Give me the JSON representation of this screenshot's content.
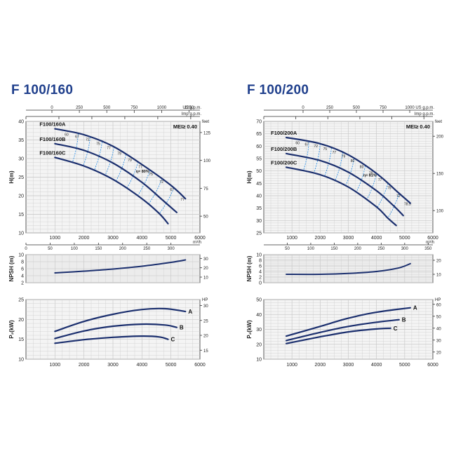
{
  "charts": [
    {
      "title": "F 100/160",
      "mei": "MEI≥ 0.40",
      "q_ticks": [
        1000,
        2000,
        3000,
        4000,
        5000,
        6000
      ],
      "q_label": "Q (l/min)",
      "usgpm": {
        "ticks": [
          "0",
          "250",
          "500",
          "750",
          "1000",
          "1250"
        ],
        "unit": "US g.p.m."
      },
      "impgpm": {
        "ticks": [
          "0",
          "250",
          "500",
          "750",
          "1000",
          "1250"
        ],
        "unit": "Imp g.p.m."
      },
      "m3h": {
        "ticks": [
          "0",
          "50",
          "100",
          "150",
          "200",
          "250",
          "300"
        ],
        "unit": "m³/h"
      },
      "head": {
        "ylabel": "H(m)",
        "ylim": [
          10,
          40
        ],
        "yticks": [
          10,
          15,
          20,
          25,
          30,
          35,
          40
        ],
        "right_unit": "feet",
        "right_ticks": [
          "50",
          "75",
          "100",
          "125"
        ],
        "eff_label": "η= 80%",
        "series": [
          {
            "name": "F100/160A",
            "points": [
              [
                1000,
                38
              ],
              [
                2000,
                36.4
              ],
              [
                3000,
                33.3
              ],
              [
                4000,
                28.4
              ],
              [
                5000,
                22.8
              ],
              [
                5500,
                19.2
              ]
            ]
          },
          {
            "name": "F100/160B",
            "points": [
              [
                1000,
                34
              ],
              [
                2000,
                32.2
              ],
              [
                3000,
                28.8
              ],
              [
                4000,
                23.6
              ],
              [
                4700,
                18.9
              ],
              [
                5200,
                15.5
              ]
            ]
          },
          {
            "name": "F100/160C",
            "points": [
              [
                1000,
                30.3
              ],
              [
                2000,
                28
              ],
              [
                3000,
                24.4
              ],
              [
                4000,
                19.2
              ],
              [
                4600,
                15.2
              ],
              [
                4900,
                12.5
              ]
            ]
          }
        ],
        "eff_labels": [
          "60",
          "67",
          "72",
          "75",
          "77",
          "79",
          "79",
          "77",
          "75",
          "72",
          "67",
          "77"
        ]
      },
      "npsh": {
        "ylabel": "NPSH (m)",
        "ylim": [
          2,
          10
        ],
        "yticks": [
          2,
          4,
          6,
          8,
          10
        ],
        "right_ticks": [
          "10",
          "20",
          "30"
        ],
        "points": [
          [
            1000,
            4.8
          ],
          [
            2000,
            5.3
          ],
          [
            3000,
            5.9
          ],
          [
            4000,
            6.7
          ],
          [
            5000,
            7.8
          ],
          [
            5500,
            8.5
          ]
        ]
      },
      "power": {
        "ylabel": "P₂(kW)",
        "ylim": [
          10,
          25
        ],
        "yticks": [
          10,
          15,
          20,
          25
        ],
        "right_unit": "HP",
        "right_ticks": [
          "15",
          "20",
          "25",
          "30"
        ],
        "series": [
          {
            "name": "A",
            "points": [
              [
                1000,
                17
              ],
              [
                2000,
                19.5
              ],
              [
                3000,
                21.3
              ],
              [
                4000,
                22.5
              ],
              [
                4800,
                22.7
              ],
              [
                5500,
                22
              ]
            ]
          },
          {
            "name": "B",
            "points": [
              [
                1000,
                15.2
              ],
              [
                2000,
                17.1
              ],
              [
                3000,
                18.3
              ],
              [
                4000,
                18.8
              ],
              [
                4800,
                18.6
              ],
              [
                5200,
                18
              ]
            ]
          },
          {
            "name": "C",
            "points": [
              [
                1000,
                14
              ],
              [
                2000,
                14.9
              ],
              [
                3000,
                15.5
              ],
              [
                4000,
                15.8
              ],
              [
                4600,
                15.6
              ],
              [
                4900,
                15
              ]
            ]
          }
        ]
      }
    },
    {
      "title": "F 100/200",
      "mei": "MEI≥ 0.40",
      "q_ticks": [
        1000,
        2000,
        3000,
        4000,
        5000,
        6000
      ],
      "q_label": "Q (l/min)",
      "usgpm": {
        "ticks": [
          "0",
          "250",
          "500",
          "750",
          "1000",
          "1250"
        ],
        "unit": "US g.p.m."
      },
      "impgpm": {
        "ticks": [
          "0",
          "250",
          "500",
          "750",
          "1000",
          "1250"
        ],
        "unit": "Imp g.p.m."
      },
      "m3h": {
        "ticks": [
          "50",
          "100",
          "150",
          "200",
          "250",
          "300",
          "350"
        ],
        "unit": "m³/h"
      },
      "head": {
        "ylabel": "H(m)",
        "ylim": [
          25,
          70
        ],
        "yticks": [
          25,
          30,
          35,
          40,
          45,
          50,
          55,
          60,
          65,
          70
        ],
        "right_unit": "feet",
        "right_ticks": [
          "100",
          "150",
          "200"
        ],
        "eff_label": "η= 81%",
        "series": [
          {
            "name": "F100/200A",
            "points": [
              [
                800,
                63.5
              ],
              [
                2000,
                61
              ],
              [
                3000,
                56.5
              ],
              [
                4000,
                49
              ],
              [
                4800,
                41
              ],
              [
                5200,
                37
              ]
            ]
          },
          {
            "name": "F100/200B",
            "points": [
              [
                800,
                57
              ],
              [
                2000,
                54.2
              ],
              [
                3000,
                49.5
              ],
              [
                4000,
                42
              ],
              [
                4600,
                36
              ],
              [
                4950,
                32
              ]
            ]
          },
          {
            "name": "F100/200C",
            "points": [
              [
                800,
                51.5
              ],
              [
                2000,
                48.5
              ],
              [
                3000,
                43.5
              ],
              [
                4000,
                35.5
              ],
              [
                4400,
                31
              ],
              [
                4700,
                28
              ]
            ]
          }
        ],
        "eff_labels": [
          "60",
          "67",
          "72",
          "75",
          "77",
          "79",
          "80",
          "80",
          "79",
          "77",
          "75",
          "72",
          "78.5"
        ]
      },
      "npsh": {
        "ylabel": "NPSH (m)",
        "ylim": [
          0,
          10
        ],
        "yticks": [
          0,
          2,
          4,
          6,
          8,
          10
        ],
        "right_ticks": [
          "10",
          "20"
        ],
        "points": [
          [
            800,
            3
          ],
          [
            2000,
            3
          ],
          [
            3000,
            3.3
          ],
          [
            4000,
            4
          ],
          [
            4800,
            5.3
          ],
          [
            5200,
            6.8
          ]
        ]
      },
      "power": {
        "ylabel": "P₂(kW)",
        "ylim": [
          10,
          50
        ],
        "yticks": [
          10,
          20,
          30,
          40,
          50
        ],
        "right_unit": "HP",
        "right_ticks": [
          "20",
          "30",
          "40",
          "50",
          "60"
        ],
        "series": [
          {
            "name": "A",
            "points": [
              [
                800,
                25.5
              ],
              [
                2000,
                32
              ],
              [
                3000,
                37.5
              ],
              [
                4000,
                41.5
              ],
              [
                5200,
                44.5
              ]
            ]
          },
          {
            "name": "B",
            "points": [
              [
                800,
                22.5
              ],
              [
                2000,
                28
              ],
              [
                3000,
                32
              ],
              [
                4000,
                34.8
              ],
              [
                4800,
                36.5
              ]
            ]
          },
          {
            "name": "C",
            "points": [
              [
                800,
                20.5
              ],
              [
                2000,
                25
              ],
              [
                3000,
                28.3
              ],
              [
                4000,
                30.3
              ],
              [
                4500,
                30.8
              ]
            ]
          }
        ]
      }
    }
  ],
  "chart_data": [
    {
      "type": "line",
      "title": "F 100/160 — H(m) vs Q (l/min)",
      "xlabel": "Q (l/min)",
      "ylabel": "H(m)",
      "ylim": [
        10,
        40
      ],
      "series": [
        {
          "name": "F100/160A",
          "x": [
            1000,
            2000,
            3000,
            4000,
            5000,
            5500
          ],
          "values": [
            38,
            36.4,
            33.3,
            28.4,
            22.8,
            19.2
          ]
        },
        {
          "name": "F100/160B",
          "x": [
            1000,
            2000,
            3000,
            4000,
            4700,
            5200
          ],
          "values": [
            34,
            32.2,
            28.8,
            23.6,
            18.9,
            15.5
          ]
        },
        {
          "name": "F100/160C",
          "x": [
            1000,
            2000,
            3000,
            4000,
            4600,
            4900
          ],
          "values": [
            30.3,
            28,
            24.4,
            19.2,
            15.2,
            12.5
          ]
        }
      ]
    },
    {
      "type": "line",
      "title": "F 100/160 — NPSH (m)",
      "xlabel": "",
      "ylabel": "NPSH (m)",
      "ylim": [
        2,
        10
      ],
      "series": [
        {
          "name": "",
          "x": [
            1000,
            2000,
            3000,
            4000,
            5000,
            5500
          ],
          "values": [
            4.8,
            5.3,
            5.9,
            6.7,
            7.8,
            8.5
          ]
        }
      ]
    },
    {
      "type": "line",
      "title": "F 100/160 — P2(kW)",
      "xlabel": "Q (l/min)",
      "ylabel": "P2(kW)",
      "ylim": [
        10,
        25
      ],
      "series": [
        {
          "name": "A",
          "x": [
            1000,
            2000,
            3000,
            4000,
            4800,
            5500
          ],
          "values": [
            17,
            19.5,
            21.3,
            22.5,
            22.7,
            22
          ]
        },
        {
          "name": "B",
          "x": [
            1000,
            2000,
            3000,
            4000,
            4800,
            5200
          ],
          "values": [
            15.2,
            17.1,
            18.3,
            18.8,
            18.6,
            18
          ]
        },
        {
          "name": "C",
          "x": [
            1000,
            2000,
            3000,
            4000,
            4600,
            4900
          ],
          "values": [
            14,
            14.9,
            15.5,
            15.8,
            15.6,
            15
          ]
        }
      ]
    },
    {
      "type": "line",
      "title": "F 100/200 — H(m) vs Q (l/min)",
      "xlabel": "Q (l/min)",
      "ylabel": "H(m)",
      "ylim": [
        25,
        70
      ],
      "series": [
        {
          "name": "F100/200A",
          "x": [
            800,
            2000,
            3000,
            4000,
            4800,
            5200
          ],
          "values": [
            63.5,
            61,
            56.5,
            49,
            41,
            37
          ]
        },
        {
          "name": "F100/200B",
          "x": [
            800,
            2000,
            3000,
            4000,
            4600,
            4950
          ],
          "values": [
            57,
            54.2,
            49.5,
            42,
            36,
            32
          ]
        },
        {
          "name": "F100/200C",
          "x": [
            800,
            2000,
            3000,
            4000,
            4400,
            4700
          ],
          "values": [
            51.5,
            48.5,
            43.5,
            35.5,
            31,
            28
          ]
        }
      ]
    },
    {
      "type": "line",
      "title": "F 100/200 — NPSH (m)",
      "xlabel": "",
      "ylabel": "NPSH (m)",
      "ylim": [
        0,
        10
      ],
      "series": [
        {
          "name": "",
          "x": [
            800,
            2000,
            3000,
            4000,
            4800,
            5200
          ],
          "values": [
            3,
            3,
            3.3,
            4,
            5.3,
            6.8
          ]
        }
      ]
    },
    {
      "type": "line",
      "title": "F 100/200 — P2(kW)",
      "xlabel": "Q (l/min)",
      "ylabel": "P2(kW)",
      "ylim": [
        10,
        50
      ],
      "series": [
        {
          "name": "A",
          "x": [
            800,
            2000,
            3000,
            4000,
            5200
          ],
          "values": [
            25.5,
            32,
            37.5,
            41.5,
            44.5
          ]
        },
        {
          "name": "B",
          "x": [
            800,
            2000,
            3000,
            4000,
            4800
          ],
          "values": [
            22.5,
            28,
            32,
            34.8,
            36.5
          ]
        },
        {
          "name": "C",
          "x": [
            800,
            2000,
            3000,
            4000,
            4500
          ],
          "values": [
            20.5,
            25,
            28.3,
            30.3,
            30.8
          ]
        }
      ]
    }
  ]
}
